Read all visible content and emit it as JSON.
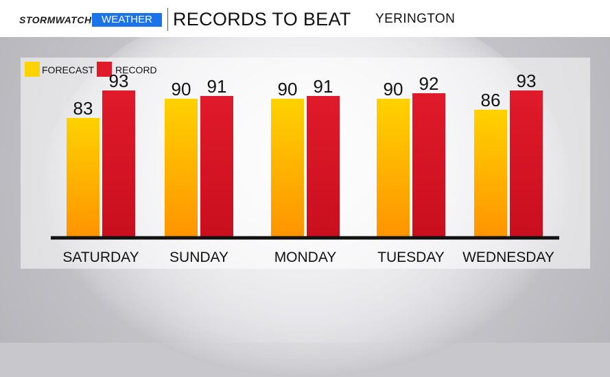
{
  "header": {
    "brand_left": "STORMWATCH",
    "brand_right": "WEATHER",
    "title": "RECORDS TO BEAT",
    "location": "YERINGTON"
  },
  "colors": {
    "forecast_top": "#ffd200",
    "forecast_bottom": "#ff9400",
    "record_top": "#e01a2a",
    "record_bottom": "#c90f1e",
    "brand_blue": "#1a73e8"
  },
  "chart_data": {
    "type": "bar",
    "title": "RECORDS TO BEAT",
    "categories": [
      "SATURDAY",
      "SUNDAY",
      "MONDAY",
      "TUESDAY",
      "WEDNESDAY"
    ],
    "series": [
      {
        "name": "FORECAST",
        "values": [
          83,
          90,
          90,
          90,
          86
        ]
      },
      {
        "name": "RECORD",
        "values": [
          93,
          91,
          91,
          92,
          93
        ]
      }
    ],
    "legend_position": "top-left",
    "grid": false
  }
}
